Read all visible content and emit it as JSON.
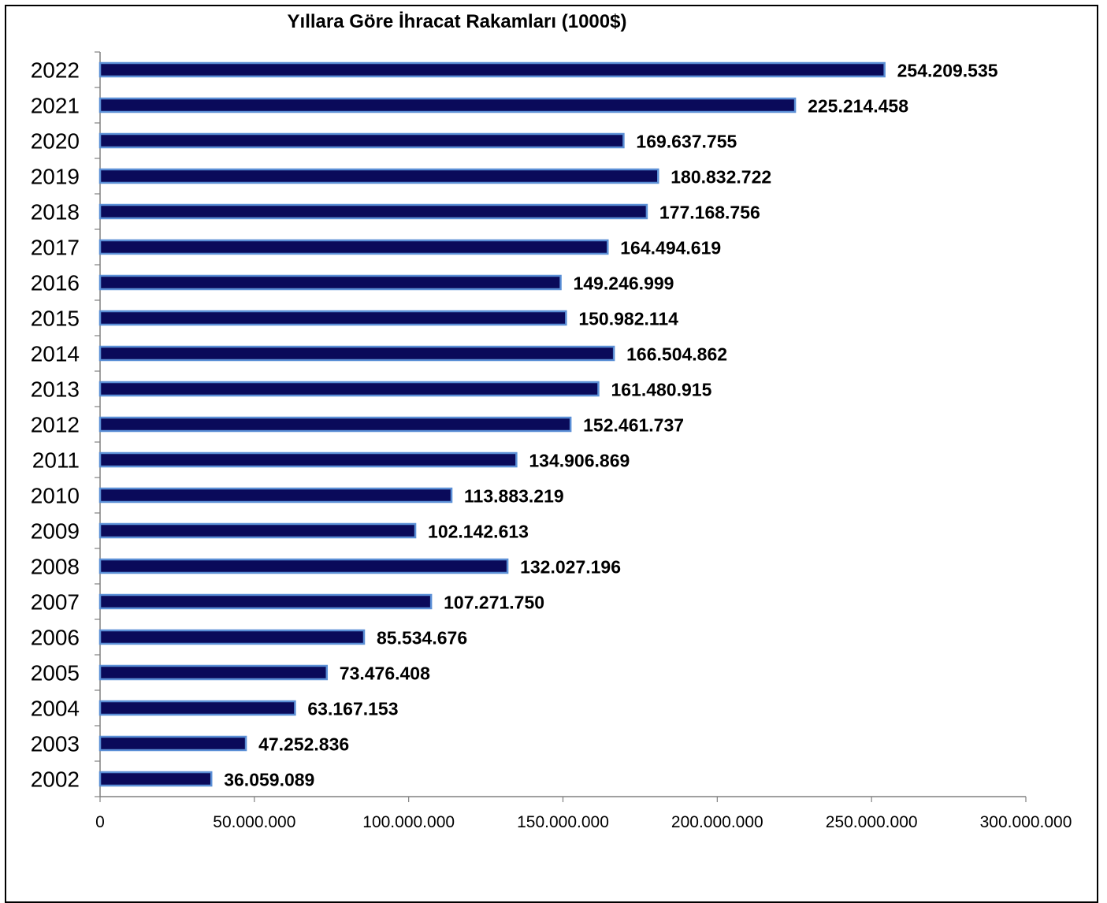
{
  "chart_data": {
    "type": "bar",
    "orientation": "horizontal",
    "title": "Yıllara Göre İhracat Rakamları (1000$)",
    "xlabel": "",
    "ylabel": "",
    "categories": [
      "2022",
      "2021",
      "2020",
      "2019",
      "2018",
      "2017",
      "2016",
      "2015",
      "2014",
      "2013",
      "2012",
      "2011",
      "2010",
      "2009",
      "2008",
      "2007",
      "2006",
      "2005",
      "2004",
      "2003",
      "2002"
    ],
    "values": [
      254209535,
      225214458,
      169637755,
      180832722,
      177168756,
      164494619,
      149246999,
      150982114,
      166504862,
      161480915,
      152461737,
      134906869,
      113883219,
      102142613,
      132027196,
      107271750,
      85534676,
      73476408,
      63167153,
      47252836,
      36059089
    ],
    "value_labels": [
      "254.209.535",
      "225.214.458",
      "169.637.755",
      "180.832.722",
      "177.168.756",
      "164.494.619",
      "149.246.999",
      "150.982.114",
      "166.504.862",
      "161.480.915",
      "152.461.737",
      "134.906.869",
      "113.883.219",
      "102.142.613",
      "132.027.196",
      "107.271.750",
      "85.534.676",
      "73.476.408",
      "63.167.153",
      "47.252.836",
      "36.059.089"
    ],
    "xlim": [
      0,
      300000000
    ],
    "x_ticks": [
      0,
      50000000,
      100000000,
      150000000,
      200000000,
      250000000,
      300000000
    ],
    "x_tick_labels": [
      "0",
      "50.000.000",
      "100.000.000",
      "150.000.000",
      "200.000.000",
      "250.000.000",
      "300.000.000"
    ],
    "grid": false,
    "legend": "none",
    "colors": {
      "bar_fill": "#0a0a5a",
      "bar_edge": "#5b8fd6",
      "text": "#000000",
      "axis": "#808080"
    }
  }
}
